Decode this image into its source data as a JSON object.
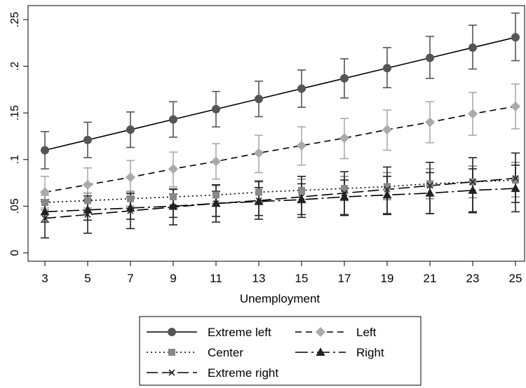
{
  "chart_data": {
    "type": "line",
    "xlabel": "Unemployment",
    "ylabel": "",
    "x": [
      3,
      5,
      7,
      9,
      11,
      13,
      15,
      17,
      19,
      21,
      23,
      25
    ],
    "xlim": [
      3,
      25
    ],
    "ylim": [
      0,
      0.25
    ],
    "x_ticks": [
      "3",
      "5",
      "7",
      "9",
      "11",
      "13",
      "15",
      "17",
      "19",
      "21",
      "23",
      "25"
    ],
    "y_ticks": [
      {
        "value": 0,
        "label": "0"
      },
      {
        "value": 0.05,
        "label": ".05"
      },
      {
        "value": 0.1,
        "label": ".1"
      },
      {
        "value": 0.15,
        "label": ".15"
      },
      {
        "value": 0.2,
        "label": ".2"
      },
      {
        "value": 0.25,
        "label": ".25"
      }
    ],
    "grid": false,
    "legend_position": "bottom",
    "series": [
      {
        "name": "Extreme left",
        "color": "#555555",
        "dash": "solid",
        "marker": "circle",
        "values": [
          0.11,
          0.121,
          0.132,
          0.143,
          0.154,
          0.165,
          0.176,
          0.187,
          0.198,
          0.209,
          0.22,
          0.231
        ],
        "ci_low": [
          0.09,
          0.102,
          0.113,
          0.124,
          0.135,
          0.146,
          0.156,
          0.166,
          0.177,
          0.187,
          0.197,
          0.206
        ],
        "ci_high": [
          0.13,
          0.14,
          0.151,
          0.162,
          0.173,
          0.184,
          0.196,
          0.208,
          0.22,
          0.232,
          0.244,
          0.257
        ]
      },
      {
        "name": "Left",
        "color": "#aaaaaa",
        "dash": "dashed",
        "marker": "diamond",
        "values": [
          0.065,
          0.073,
          0.081,
          0.09,
          0.098,
          0.107,
          0.115,
          0.123,
          0.132,
          0.14,
          0.149,
          0.157
        ],
        "ci_low": [
          0.048,
          0.055,
          0.063,
          0.071,
          0.079,
          0.086,
          0.094,
          0.101,
          0.11,
          0.118,
          0.126,
          0.133
        ],
        "ci_high": [
          0.082,
          0.091,
          0.099,
          0.108,
          0.117,
          0.126,
          0.135,
          0.144,
          0.153,
          0.162,
          0.172,
          0.181
        ]
      },
      {
        "name": "Center",
        "color": "#888888",
        "dash": "dotted",
        "marker": "square",
        "values": [
          0.054,
          0.056,
          0.058,
          0.06,
          0.062,
          0.065,
          0.067,
          0.069,
          0.071,
          0.074,
          0.076,
          0.078
        ],
        "ci_low": [
          0.046,
          0.048,
          0.05,
          0.051,
          0.053,
          0.054,
          0.055,
          0.056,
          0.057,
          0.058,
          0.059,
          0.06
        ],
        "ci_high": [
          0.062,
          0.064,
          0.066,
          0.069,
          0.072,
          0.076,
          0.079,
          0.082,
          0.086,
          0.09,
          0.093,
          0.097
        ]
      },
      {
        "name": "Right",
        "color": "#222222",
        "dash": "longdashdot",
        "marker": "triangle",
        "values": [
          0.044,
          0.046,
          0.048,
          0.05,
          0.053,
          0.055,
          0.057,
          0.06,
          0.062,
          0.064,
          0.067,
          0.069
        ],
        "ci_low": [
          0.033,
          0.035,
          0.036,
          0.038,
          0.039,
          0.04,
          0.041,
          0.041,
          0.042,
          0.042,
          0.043,
          0.044
        ],
        "ci_high": [
          0.055,
          0.057,
          0.06,
          0.063,
          0.066,
          0.07,
          0.074,
          0.078,
          0.082,
          0.086,
          0.09,
          0.094
        ]
      },
      {
        "name": "Extreme right",
        "color": "#222222",
        "dash": "longdash",
        "marker": "x",
        "values": [
          0.037,
          0.041,
          0.045,
          0.049,
          0.053,
          0.056,
          0.06,
          0.064,
          0.068,
          0.072,
          0.076,
          0.08
        ],
        "ci_low": [
          0.016,
          0.021,
          0.026,
          0.03,
          0.033,
          0.036,
          0.038,
          0.04,
          0.041,
          0.042,
          0.044,
          0.054
        ],
        "ci_high": [
          0.057,
          0.061,
          0.064,
          0.068,
          0.073,
          0.077,
          0.082,
          0.087,
          0.092,
          0.097,
          0.102,
          0.107
        ]
      }
    ]
  }
}
